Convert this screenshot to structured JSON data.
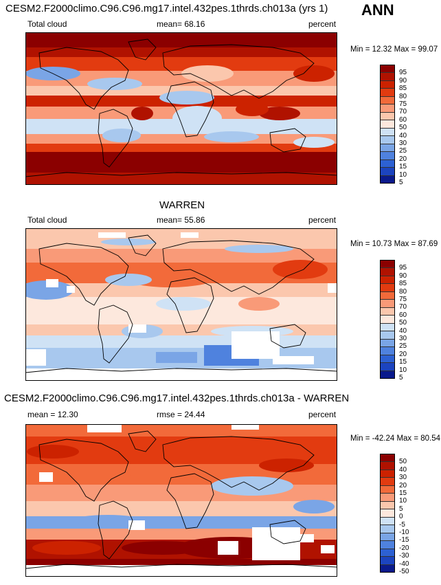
{
  "header": {
    "title": "CESM2.F2000climo.C96.C96.mg17.intel.432pes.1thrds.ch013a (yrs 1)",
    "season": "ANN"
  },
  "chart_data": [
    {
      "type": "heatmap",
      "title": "CESM2.F2000climo.C96.C96.mg17.intel.432pes.1thrds.ch013a (yrs 1)",
      "left_label": "Total cloud",
      "center_label": "mean=  68.16",
      "units": "percent",
      "minmax": "Min =  12.32 Max =  99.07",
      "mean": 68.16,
      "min": 12.32,
      "max": 99.07,
      "colorbar_levels": [
        "95",
        "90",
        "85",
        "80",
        "75",
        "70",
        "60",
        "50",
        "40",
        "30",
        "25",
        "20",
        "15",
        "10",
        "5"
      ],
      "colorbar_colors": [
        "#8b0000",
        "#b01200",
        "#cc2200",
        "#e23b10",
        "#f26a3a",
        "#f99a78",
        "#fbc7ad",
        "#fde8dd",
        "#cfe2f5",
        "#a8c8ee",
        "#7aa5e6",
        "#4f82de",
        "#2d61d3",
        "#1c44bf",
        "#0a1a8c"
      ]
    },
    {
      "type": "heatmap",
      "title": "WARREN",
      "left_label": "Total cloud",
      "center_label": "mean=  55.86",
      "units": "percent",
      "minmax": "Min =  10.73 Max =  87.69",
      "mean": 55.86,
      "min": 10.73,
      "max": 87.69,
      "colorbar_levels": [
        "95",
        "90",
        "85",
        "80",
        "75",
        "70",
        "60",
        "50",
        "40",
        "30",
        "25",
        "20",
        "15",
        "10",
        "5"
      ],
      "colorbar_colors": [
        "#8b0000",
        "#b01200",
        "#cc2200",
        "#e23b10",
        "#f26a3a",
        "#f99a78",
        "#fbc7ad",
        "#fde8dd",
        "#cfe2f5",
        "#a8c8ee",
        "#7aa5e6",
        "#4f82de",
        "#2d61d3",
        "#1c44bf",
        "#0a1a8c"
      ]
    },
    {
      "type": "heatmap",
      "title": "CESM2.F2000climo.C96.C96.mg17.intel.432pes.1thrds.ch013a - WARREN",
      "left_label": "mean =  12.30",
      "center_label": "rmse =  24.44",
      "units": "percent",
      "minmax": "Min = -42.24 Max =  80.54",
      "mean": 12.3,
      "rmse": 24.44,
      "min": -42.24,
      "max": 80.54,
      "colorbar_levels": [
        "50",
        "40",
        "30",
        "20",
        "15",
        "10",
        "5",
        "0",
        "-5",
        "-10",
        "-15",
        "-20",
        "-30",
        "-40",
        "-50"
      ],
      "colorbar_colors": [
        "#8b0000",
        "#b01200",
        "#cc2200",
        "#e23b10",
        "#f26a3a",
        "#f99a78",
        "#fbc7ad",
        "#fde8dd",
        "#cfe2f5",
        "#a8c8ee",
        "#7aa5e6",
        "#4f82de",
        "#2d61d3",
        "#1c44bf",
        "#0a1a8c"
      ]
    }
  ]
}
